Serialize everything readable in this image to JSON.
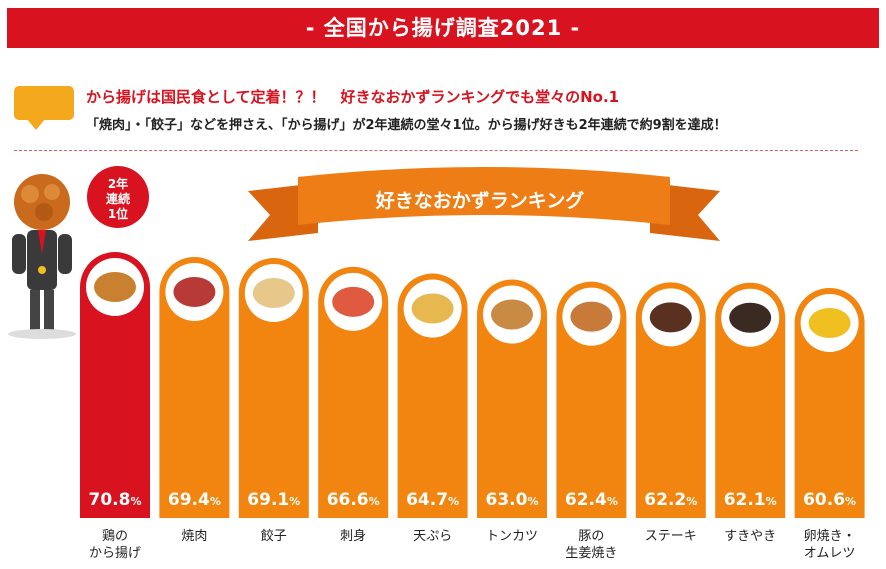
{
  "header": {
    "title": "- 全国から揚げ調査2021 -"
  },
  "lead": {
    "headline": "から揚げは国民食として定着！？！　好きなおかずランキングでも堂々のNo.1",
    "body": "「焼肉」・「餃子」などを押さえ、「から揚げ」が2年連続の堂々1位。から揚げ好きも2年連続で約9割を達成！"
  },
  "badge": {
    "line1": "2年",
    "line2": "連続",
    "line3": "1位"
  },
  "colors": {
    "accent_red": "#d8121e",
    "bar_orange": "#f2850f",
    "ribbon_orange": "#ee7d16"
  },
  "chart_data": {
    "type": "bar",
    "title": "好きなおかずランキング",
    "categories": [
      "鶏の\nから揚げ",
      "焼肉",
      "餃子",
      "刺身",
      "天ぷら",
      "トンカツ",
      "豚の\n生姜焼き",
      "ステーキ",
      "すきやき",
      "卵焼き・\nオムレツ"
    ],
    "values": [
      70.8,
      69.4,
      69.1,
      66.6,
      64.7,
      63.0,
      62.4,
      62.2,
      62.1,
      60.6
    ],
    "value_labels": [
      "70.8",
      "69.4",
      "69.1",
      "66.6",
      "64.7",
      "63.0",
      "62.4",
      "62.2",
      "62.1",
      "60.6"
    ],
    "unit": "%",
    "highlight_index": 0,
    "grid": false,
    "legend": "none"
  }
}
